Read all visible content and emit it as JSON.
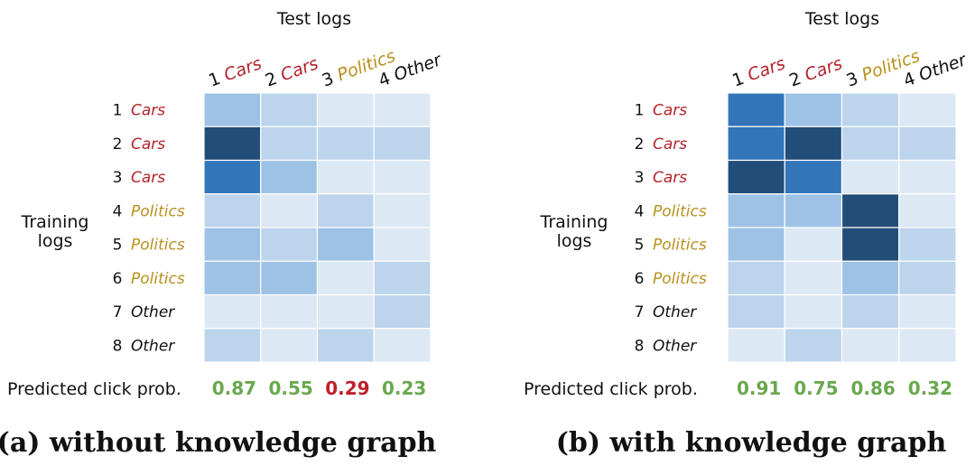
{
  "colors": {
    "cars": "#b3222a",
    "politics": "#b8901c",
    "other": "#111111",
    "good": "#6aa84f",
    "bad": "#c0202a",
    "scale": [
      "#dde8f5",
      "#bcd4ec",
      "#9dc2e6",
      "#3275b9",
      "#214d78"
    ]
  },
  "chart_data": [
    {
      "type": "heatmap",
      "id": "a",
      "caption": "(a) without knowledge graph",
      "col_axis_title": "Test logs",
      "row_axis_title": [
        "Training",
        "logs"
      ],
      "columns": [
        {
          "num": "1",
          "topic": "Cars",
          "cat": "cars"
        },
        {
          "num": "2",
          "topic": "Cars",
          "cat": "cars"
        },
        {
          "num": "3",
          "topic": "Politics",
          "cat": "politics"
        },
        {
          "num": "4",
          "topic": "Other",
          "cat": "other"
        }
      ],
      "rows": [
        {
          "num": "1",
          "topic": "Cars",
          "cat": "cars"
        },
        {
          "num": "2",
          "topic": "Cars",
          "cat": "cars"
        },
        {
          "num": "3",
          "topic": "Cars",
          "cat": "cars"
        },
        {
          "num": "4",
          "topic": "Politics",
          "cat": "politics"
        },
        {
          "num": "5",
          "topic": "Politics",
          "cat": "politics"
        },
        {
          "num": "6",
          "topic": "Politics",
          "cat": "politics"
        },
        {
          "num": "7",
          "topic": "Other",
          "cat": "other"
        },
        {
          "num": "8",
          "topic": "Other",
          "cat": "other"
        }
      ],
      "value_range": [
        0,
        4
      ],
      "values": [
        [
          2,
          1,
          0,
          0
        ],
        [
          4,
          1,
          1,
          1
        ],
        [
          3,
          2,
          0,
          0
        ],
        [
          1,
          0,
          1,
          0
        ],
        [
          2,
          1,
          2,
          0
        ],
        [
          2,
          2,
          0,
          1
        ],
        [
          0,
          0,
          0,
          1
        ],
        [
          1,
          0,
          1,
          0
        ]
      ],
      "predicted_label": "Predicted click prob.",
      "predicted": [
        {
          "value": "0.87",
          "status": "good"
        },
        {
          "value": "0.55",
          "status": "good"
        },
        {
          "value": "0.29",
          "status": "bad"
        },
        {
          "value": "0.23",
          "status": "good"
        }
      ]
    },
    {
      "type": "heatmap",
      "id": "b",
      "caption": "(b) with knowledge graph",
      "col_axis_title": "Test logs",
      "row_axis_title": [
        "Training",
        "logs"
      ],
      "columns": [
        {
          "num": "1",
          "topic": "Cars",
          "cat": "cars"
        },
        {
          "num": "2",
          "topic": "Cars",
          "cat": "cars"
        },
        {
          "num": "3",
          "topic": "Politics",
          "cat": "politics"
        },
        {
          "num": "4",
          "topic": "Other",
          "cat": "other"
        }
      ],
      "rows": [
        {
          "num": "1",
          "topic": "Cars",
          "cat": "cars"
        },
        {
          "num": "2",
          "topic": "Cars",
          "cat": "cars"
        },
        {
          "num": "3",
          "topic": "Cars",
          "cat": "cars"
        },
        {
          "num": "4",
          "topic": "Politics",
          "cat": "politics"
        },
        {
          "num": "5",
          "topic": "Politics",
          "cat": "politics"
        },
        {
          "num": "6",
          "topic": "Politics",
          "cat": "politics"
        },
        {
          "num": "7",
          "topic": "Other",
          "cat": "other"
        },
        {
          "num": "8",
          "topic": "Other",
          "cat": "other"
        }
      ],
      "value_range": [
        0,
        4
      ],
      "values": [
        [
          3,
          2,
          1,
          0
        ],
        [
          3,
          4,
          1,
          1
        ],
        [
          4,
          3,
          0,
          0
        ],
        [
          2,
          2,
          4,
          0
        ],
        [
          2,
          0,
          4,
          1
        ],
        [
          1,
          0,
          2,
          1
        ],
        [
          1,
          0,
          1,
          0
        ],
        [
          0,
          1,
          0,
          0
        ]
      ],
      "predicted_label": "Predicted click prob.",
      "predicted": [
        {
          "value": "0.91",
          "status": "good"
        },
        {
          "value": "0.75",
          "status": "good"
        },
        {
          "value": "0.86",
          "status": "good"
        },
        {
          "value": "0.32",
          "status": "good"
        }
      ]
    }
  ]
}
